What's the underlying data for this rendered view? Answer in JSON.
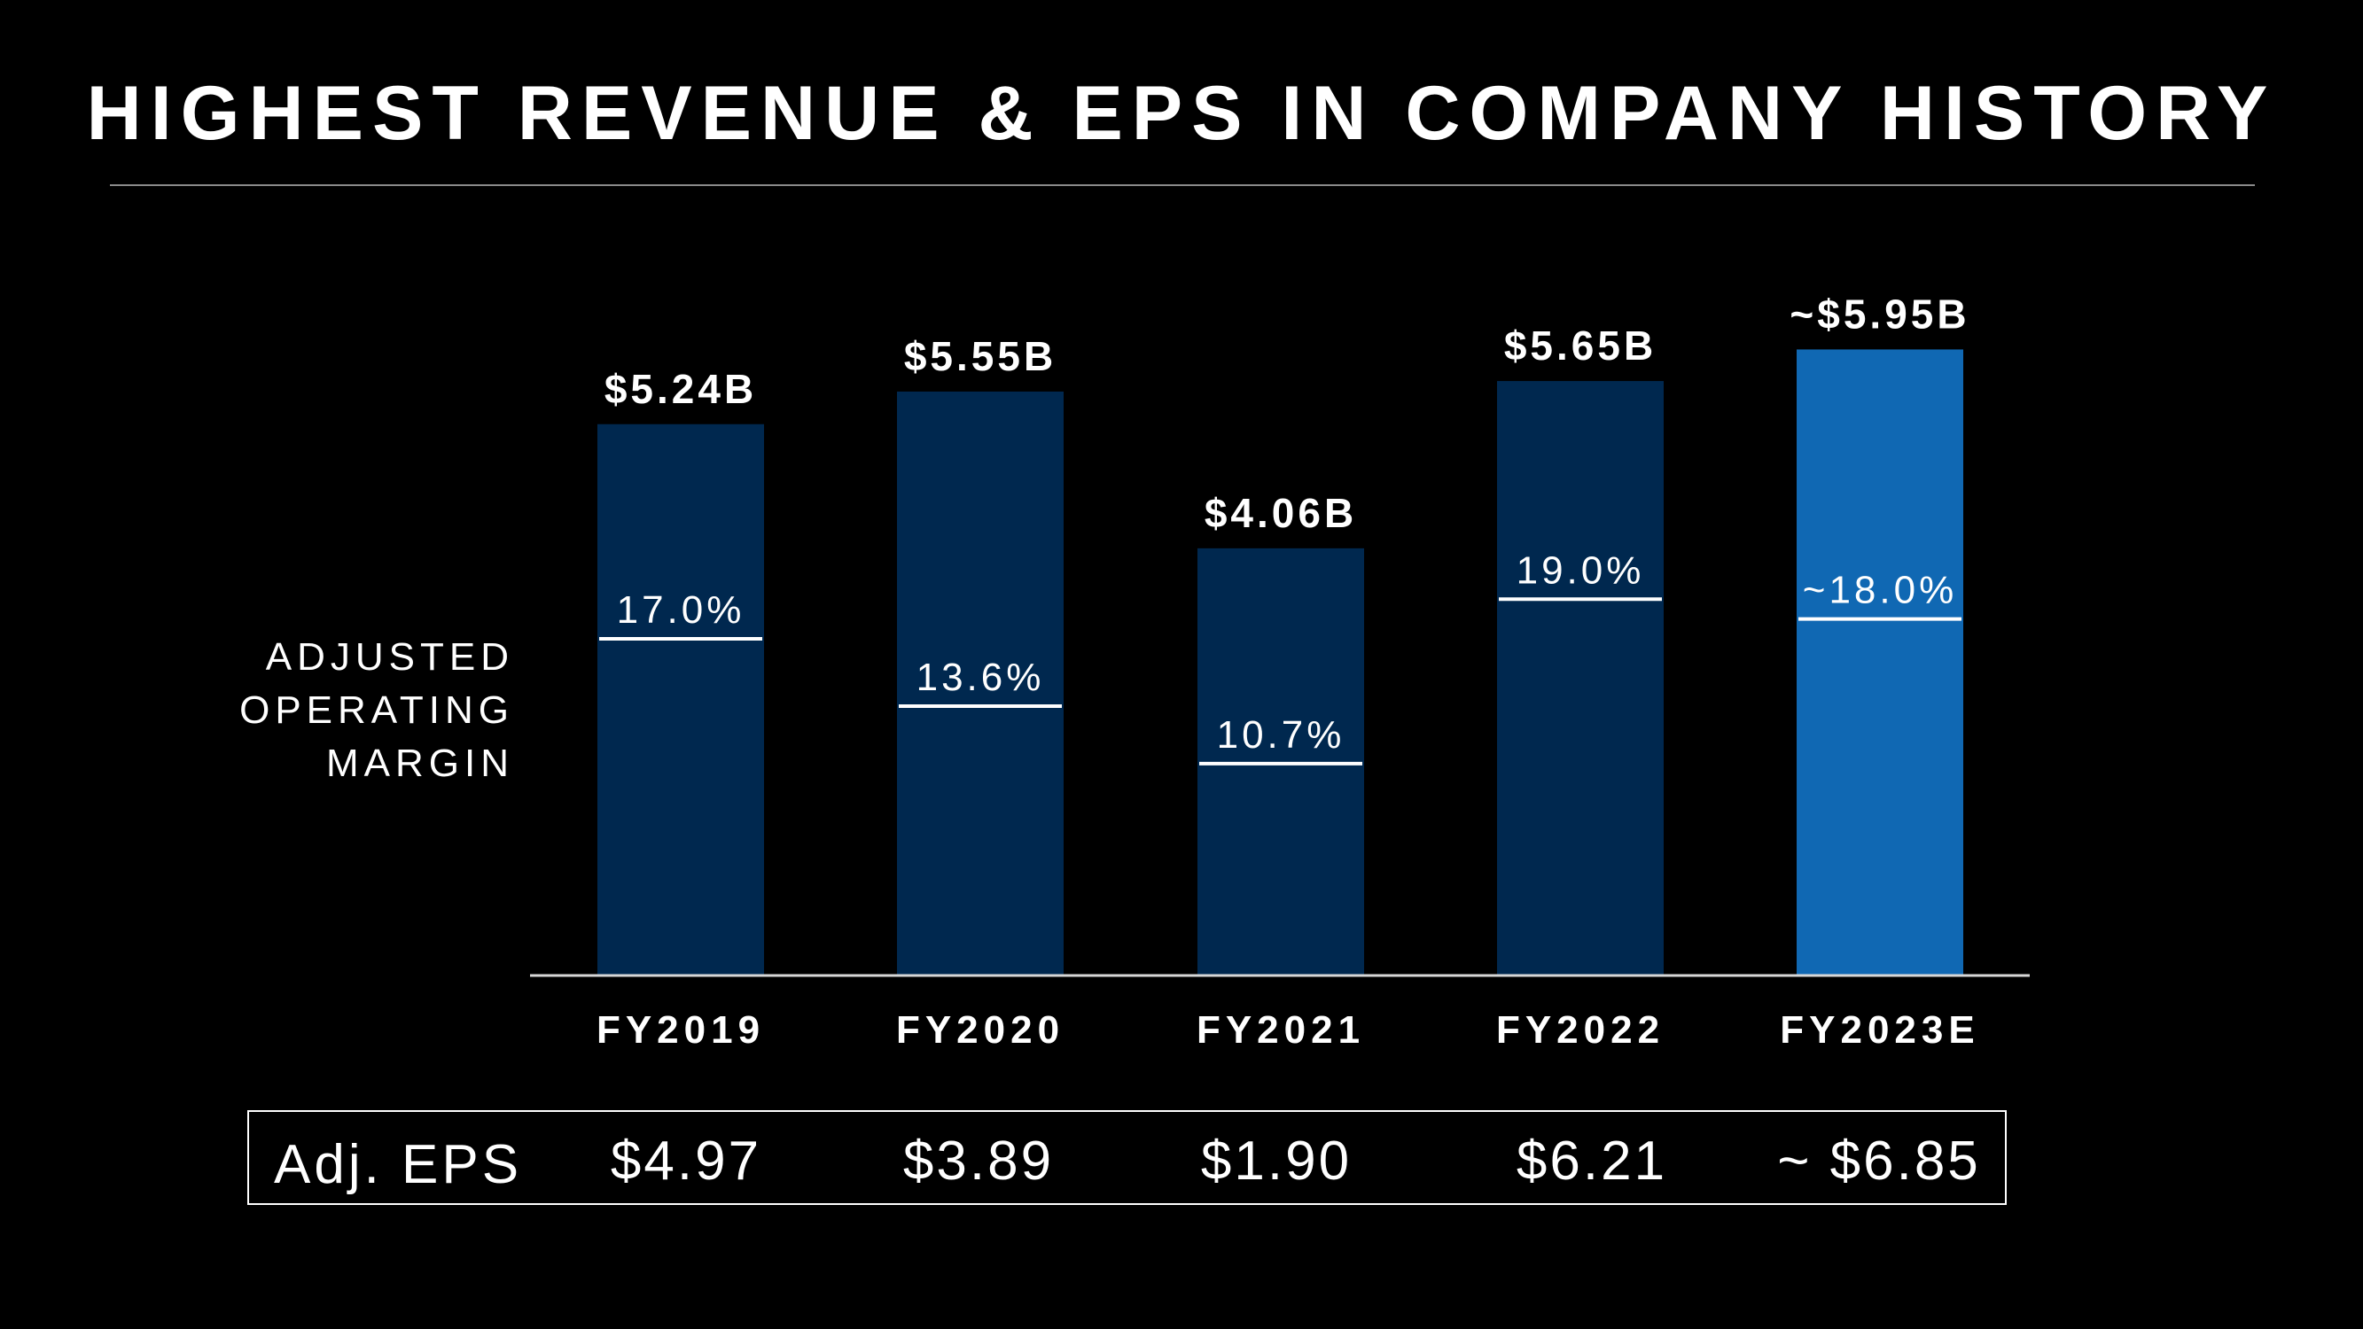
{
  "title": "HIGHEST REVENUE & EPS IN COMPANY HISTORY",
  "side_label": [
    "ADJUSTED",
    "OPERATING",
    "MARGIN"
  ],
  "colors": {
    "background": "#000000",
    "bar": "#00284f",
    "bar_highlight": "#1068b3",
    "text": "#ffffff",
    "rule": "#8a8a8a"
  },
  "chart_data": {
    "type": "bar",
    "categories": [
      "FY2019",
      "FY2020",
      "FY2021",
      "FY2022",
      "FY2023E"
    ],
    "values": [
      5.24,
      5.55,
      4.06,
      5.65,
      5.95
    ],
    "value_labels": [
      "$5.24B",
      "$5.55B",
      "$4.06B",
      "$5.65B",
      "~$5.95B"
    ],
    "highlight": [
      false,
      false,
      false,
      false,
      true
    ],
    "series": [
      {
        "values": [
          5.24,
          5.55,
          4.06,
          5.65,
          5.95
        ]
      }
    ],
    "margins": {
      "values": [
        17.0,
        13.6,
        10.7,
        19.0,
        18.0
      ],
      "labels": [
        "17.0%",
        "13.6%",
        "10.7%",
        "19.0%",
        "~18.0%"
      ],
      "ylim": [
        0,
        34
      ]
    },
    "title": "HIGHEST REVENUE & EPS IN COMPANY HISTORY",
    "xlabel": "",
    "ylabel": "",
    "ylim": [
      0,
      6.4
    ],
    "grid": false,
    "legend": "none"
  },
  "eps": {
    "label": "Adj. EPS",
    "values": [
      "$4.97",
      "$3.89",
      "$1.90",
      "$6.21",
      "~ $6.85"
    ]
  }
}
